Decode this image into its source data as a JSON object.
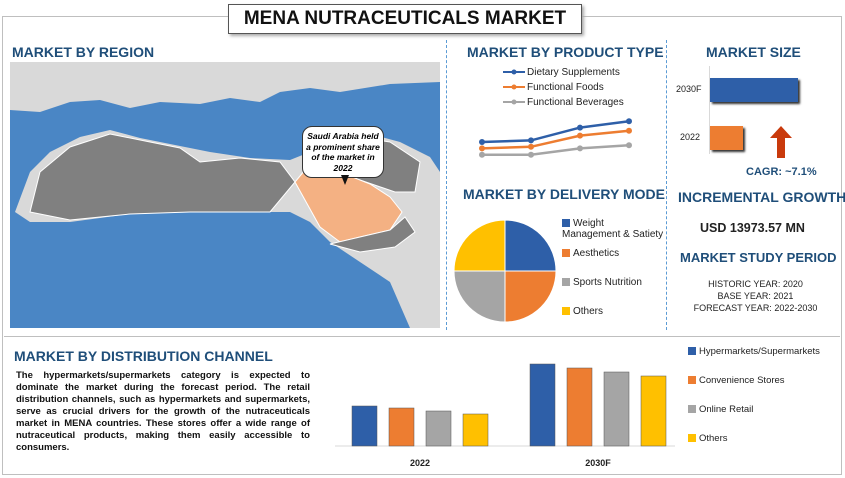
{
  "title": "MENA NUTRACEUTICALS MARKET",
  "region": {
    "heading": "MARKET BY REGION",
    "callout": "Saudi Arabia held a prominent share of the market in 2022",
    "colors": {
      "sea": "#4a86c5",
      "land": "#808080",
      "highlight": "#f4b183",
      "other_land": "#d9d9d9"
    }
  },
  "product": {
    "heading": "MARKET BY PRODUCT TYPE",
    "chart_data": {
      "type": "line",
      "x": [
        1,
        2,
        3,
        4
      ],
      "series": [
        {
          "name": "Dietary Supplements",
          "color": "#2e5fa8",
          "values": [
            1.5,
            1.6,
            2.4,
            2.8
          ]
        },
        {
          "name": "Functional Foods",
          "color": "#ed7d31",
          "values": [
            1.1,
            1.2,
            1.9,
            2.2
          ]
        },
        {
          "name": "Functional Beverages",
          "color": "#a5a5a5",
          "values": [
            0.7,
            0.7,
            1.1,
            1.3
          ]
        }
      ]
    }
  },
  "delivery": {
    "heading": "MARKET BY DELIVERY MODE",
    "chart_data": {
      "type": "pie",
      "slices": [
        {
          "name": "Weight Management & Satiety",
          "value": 25,
          "color": "#2e5fa8"
        },
        {
          "name": "Aesthetics",
          "value": 25,
          "color": "#ed7d31"
        },
        {
          "name": "Sports Nutrition",
          "value": 25,
          "color": "#a5a5a5"
        },
        {
          "name": "Others",
          "value": 25,
          "color": "#ffc000"
        }
      ]
    }
  },
  "size": {
    "heading": "MARKET SIZE",
    "chart_data": {
      "type": "bar",
      "categories": [
        "2030F",
        "2022"
      ],
      "values": [
        100,
        37
      ],
      "colors": [
        "#2e5fa8",
        "#ed7d31"
      ]
    },
    "cagr": "CAGR:  ~7.1%"
  },
  "growth": {
    "heading": "INCREMENTAL GROWTH",
    "value": "USD 13973.57 MN"
  },
  "study": {
    "heading": "MARKET STUDY PERIOD",
    "historic": "HISTORIC YEAR: 2020",
    "base": "BASE YEAR: 2021",
    "forecast": "FORECAST YEAR: 2022-2030"
  },
  "distribution": {
    "heading": "MARKET BY DISTRIBUTION CHANNEL",
    "text": "The hypermarkets/supermarkets category is expected to dominate the market during the forecast period. The retail distribution channels, such as hypermarkets and supermarkets, serve as crucial drivers for the growth of the nutraceuticals market in MENA countries. These stores offer a wide range of nutraceutical products, making them easily accessible to consumers.",
    "chart_data": {
      "type": "bar",
      "categories": [
        "2022",
        "2030F"
      ],
      "series": [
        {
          "name": "Hypermarkets/Supermarkets",
          "color": "#2e5fa8",
          "values": [
            40,
            82
          ]
        },
        {
          "name": "Convenience Stores",
          "color": "#ed7d31",
          "values": [
            38,
            78
          ]
        },
        {
          "name": "Online Retail",
          "color": "#a5a5a5",
          "values": [
            35,
            74
          ]
        },
        {
          "name": "Others",
          "color": "#ffc000",
          "values": [
            32,
            70
          ]
        }
      ]
    }
  }
}
